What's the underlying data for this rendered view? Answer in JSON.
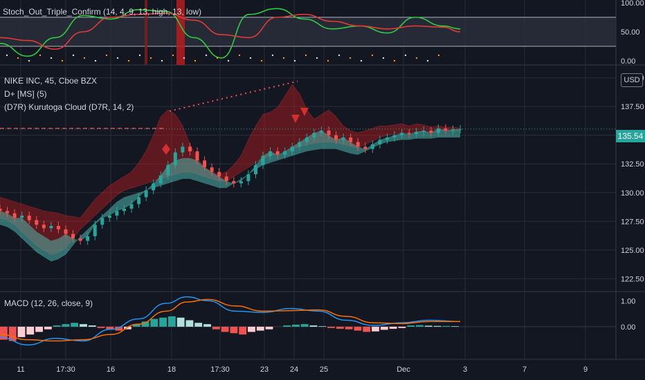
{
  "symbol": {
    "title": "NIKE INC, 45, Cboe BZX",
    "currency": "USD",
    "last_price": "135.54"
  },
  "indicators": {
    "stoch": "Stoch_Out_Triple_Confirm (14, 4, 9, 13, high, 13, low)",
    "dplus": "D+ [MS] (5)",
    "kurutoga": "(D7R) Kurutoga Cloud (D7R, 14, 2)",
    "macd": "MACD (12, 26, close, 9)"
  },
  "colors": {
    "bg": "#131722",
    "grid": "#2a2e39",
    "up": "#26a69a",
    "down": "#ef5350",
    "stoch_fast": "#2ecc40",
    "stoch_slow": "#e53935",
    "macd": "#2196f3",
    "signal": "#ff6d00",
    "cloud_bull": "#4db6ac",
    "cloud_bear": "#b71c1c"
  },
  "chart_data": [
    {
      "type": "line",
      "pane": "stochastic",
      "ylim": [
        0,
        100
      ],
      "y_ticks": [
        "100.00",
        "50.00",
        "0.00"
      ],
      "bands": [
        25,
        75
      ],
      "series": [
        {
          "name": "",
          "color": "#2ecc40",
          "x": [
            0,
            40,
            80,
            120,
            160,
            200,
            240,
            280,
            320,
            360,
            400,
            440,
            480,
            520,
            560,
            600,
            640,
            665
          ],
          "values": [
            30,
            8,
            40,
            78,
            72,
            88,
            85,
            40,
            5,
            80,
            90,
            72,
            55,
            60,
            48,
            75,
            60,
            55
          ]
        },
        {
          "name": "",
          "color": "#e53935",
          "x": [
            0,
            40,
            80,
            120,
            160,
            200,
            240,
            280,
            320,
            360,
            400,
            440,
            480,
            520,
            560,
            600,
            640,
            665
          ],
          "values": [
            40,
            35,
            20,
            50,
            75,
            80,
            82,
            70,
            45,
            40,
            75,
            80,
            68,
            60,
            55,
            60,
            58,
            50
          ]
        }
      ]
    },
    {
      "type": "candlestick",
      "pane": "price",
      "ylim": [
        121.5,
        141
      ],
      "y_ticks": [
        "140.00",
        "137.50",
        "135.00",
        "132.50",
        "130.00",
        "127.50",
        "125.00",
        "122.50"
      ],
      "x_ticks": [
        "11",
        "17:30",
        "16",
        "18",
        "17:30",
        "23",
        "24",
        "25",
        "Dec",
        "3",
        "7",
        "9"
      ],
      "close": [
        128.4,
        128.2,
        127.8,
        128.0,
        127.6,
        127.2,
        126.9,
        127.1,
        126.8,
        126.4,
        126.0,
        125.8,
        126.2,
        127.2,
        127.8,
        128.0,
        128.4,
        128.6,
        129.0,
        129.6,
        130.2,
        130.8,
        131.5,
        132.4,
        133.5,
        134.0,
        133.6,
        132.8,
        132.2,
        131.8,
        131.4,
        131.0,
        130.8,
        131.0,
        131.6,
        132.4,
        133.2,
        133.6,
        133.3,
        133.6,
        134.0,
        134.4,
        134.8,
        135.2,
        135.4,
        135.0,
        134.6,
        134.8,
        134.4,
        134.0,
        133.8,
        134.2,
        134.6,
        134.8,
        135.0,
        135.2,
        135.1,
        135.3,
        135.4,
        135.2,
        135.6,
        135.4,
        135.5,
        135.54
      ],
      "cloud_upper": [
        129.6,
        129.4,
        129.2,
        129.0,
        128.8,
        128.6,
        128.4,
        128.3,
        128.2,
        128.0,
        127.9,
        127.8,
        128.6,
        129.4,
        130.0,
        130.6,
        131.0,
        131.4,
        131.8,
        132.6,
        133.6,
        135.0,
        136.6,
        137.2,
        136.8,
        135.8,
        134.2,
        133.0,
        132.2,
        131.8,
        131.6,
        131.8,
        132.4,
        133.2,
        134.6,
        135.8,
        136.8,
        137.0,
        137.4,
        138.4,
        139.4,
        138.6,
        137.2,
        136.4,
        136.8,
        137.2,
        136.6,
        135.8,
        135.4,
        135.2,
        135.4,
        135.6,
        135.8,
        135.8,
        135.9,
        136.0,
        135.8,
        136.0,
        135.9,
        135.7,
        135.8,
        135.7,
        135.7,
        135.6
      ],
      "cloud_lower": [
        127.8,
        127.6,
        127.2,
        126.6,
        126.0,
        125.4,
        125.0,
        124.6,
        124.8,
        125.2,
        126.0,
        126.8,
        127.4,
        128.0,
        128.6,
        129.2,
        129.8,
        130.2,
        130.4,
        130.6,
        130.8,
        131.0,
        131.2,
        131.4,
        131.6,
        131.8,
        131.8,
        131.6,
        131.4,
        131.2,
        131.0,
        131.0,
        131.4,
        131.8,
        132.2,
        132.6,
        133.0,
        133.2,
        133.4,
        133.6,
        133.8,
        134.0,
        134.2,
        134.3,
        134.4,
        134.4,
        134.4,
        134.2,
        134.0,
        133.9,
        134.2,
        134.5,
        134.8,
        135.0,
        135.1,
        135.2,
        135.2,
        135.3,
        135.3,
        135.3,
        135.4,
        135.4,
        135.4,
        135.4
      ],
      "dotted_line": [
        [
          245,
          137.1
        ],
        [
          430,
          139.7
        ]
      ],
      "dashed_line": [
        [
          0,
          135.6
        ],
        [
          240,
          135.6
        ]
      ]
    },
    {
      "type": "line",
      "pane": "macd",
      "ylim": [
        -1.2,
        1.3
      ],
      "y_ticks": [
        "1.00",
        "0.00"
      ],
      "series": [
        {
          "name": "",
          "color": "#2196f3",
          "x": [
            0,
            40,
            80,
            120,
            160,
            200,
            240,
            270,
            300,
            340,
            380,
            420,
            460,
            500,
            540,
            580,
            620,
            665
          ],
          "values": [
            -0.4,
            -0.7,
            -0.45,
            -0.55,
            -0.1,
            0.3,
            0.9,
            1.15,
            1.0,
            0.6,
            0.55,
            0.7,
            0.6,
            0.25,
            0.05,
            0.15,
            0.25,
            0.2
          ]
        },
        {
          "name": "",
          "color": "#ff6d00",
          "x": [
            0,
            40,
            80,
            120,
            160,
            200,
            240,
            270,
            300,
            340,
            380,
            420,
            460,
            500,
            540,
            580,
            620,
            665
          ],
          "values": [
            -0.3,
            -0.5,
            -0.55,
            -0.5,
            -0.3,
            0.1,
            0.6,
            0.95,
            1.05,
            0.8,
            0.6,
            0.62,
            0.65,
            0.4,
            0.15,
            0.12,
            0.2,
            0.2
          ]
        }
      ],
      "histogram": [
        -0.5,
        -0.55,
        -0.4,
        -0.3,
        -0.2,
        -0.1,
        0.05,
        0.1,
        0.15,
        0.1,
        0.05,
        -0.05,
        -0.1,
        -0.15,
        -0.1,
        0.1,
        0.2,
        0.3,
        0.35,
        0.4,
        0.35,
        0.25,
        0.15,
        0.1,
        -0.1,
        -0.2,
        -0.25,
        -0.3,
        -0.2,
        -0.15,
        -0.1,
        0.0,
        0.05,
        0.08,
        0.1,
        0.05,
        0.02,
        -0.05,
        -0.08,
        -0.1,
        -0.15,
        -0.2,
        -0.18,
        -0.12,
        -0.08,
        -0.05,
        0.05,
        0.06,
        0.04,
        0.03,
        0.03,
        0.02
      ]
    }
  ]
}
